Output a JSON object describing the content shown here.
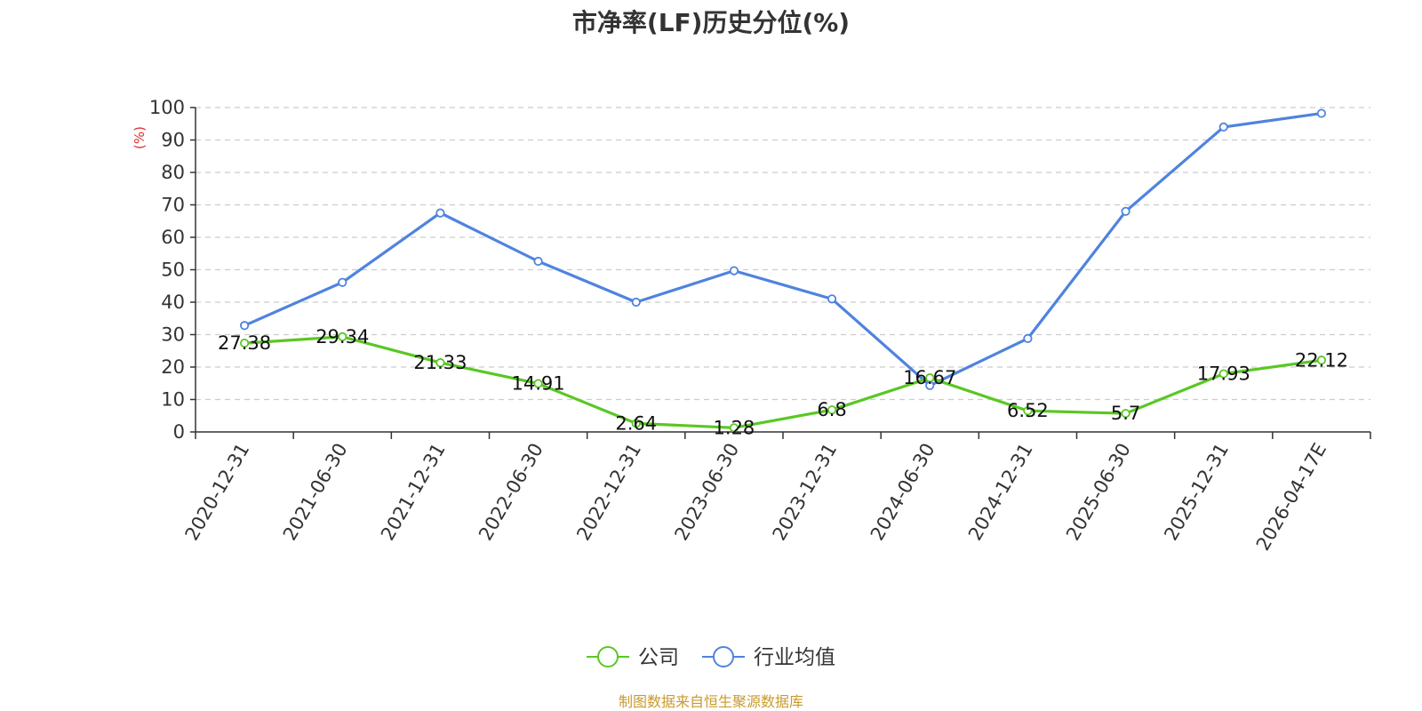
{
  "chart_data": {
    "type": "line",
    "title": "市净率(LF)历史分位(%)",
    "ylabel": "(%)",
    "xlabel": "",
    "ylim": [
      0,
      100
    ],
    "yticks": [
      0,
      10,
      20,
      30,
      40,
      50,
      60,
      70,
      80,
      90,
      100
    ],
    "grid": true,
    "legend_position": "bottom",
    "categories": [
      "2020-12-31",
      "2021-06-30",
      "2021-12-31",
      "2022-06-30",
      "2022-12-31",
      "2023-06-30",
      "2023-12-31",
      "2024-06-30",
      "2024-12-31",
      "2025-06-30",
      "2025-12-31",
      "2026-04-17E"
    ],
    "series": [
      {
        "name": "公司",
        "color": "#5ac724",
        "values": [
          27.38,
          29.34,
          21.33,
          14.91,
          2.64,
          1.28,
          6.8,
          16.67,
          6.52,
          5.7,
          17.93,
          22.12
        ],
        "labels": [
          "27.38",
          "29.34",
          "21.33",
          "14.91",
          "2.64",
          "1.28",
          "6.8",
          "16.67",
          "6.52",
          "5.7",
          "17.93",
          "22.12"
        ],
        "show_labels": true
      },
      {
        "name": "行业均值",
        "color": "#4f83df",
        "values": [
          32.8,
          46.1,
          67.5,
          52.6,
          40.0,
          49.7,
          41.0,
          14.3,
          28.8,
          68.0,
          94.0,
          98.2
        ],
        "show_labels": false
      }
    ]
  },
  "footer": {
    "source": "制图数据来自恒生聚源数据库"
  }
}
